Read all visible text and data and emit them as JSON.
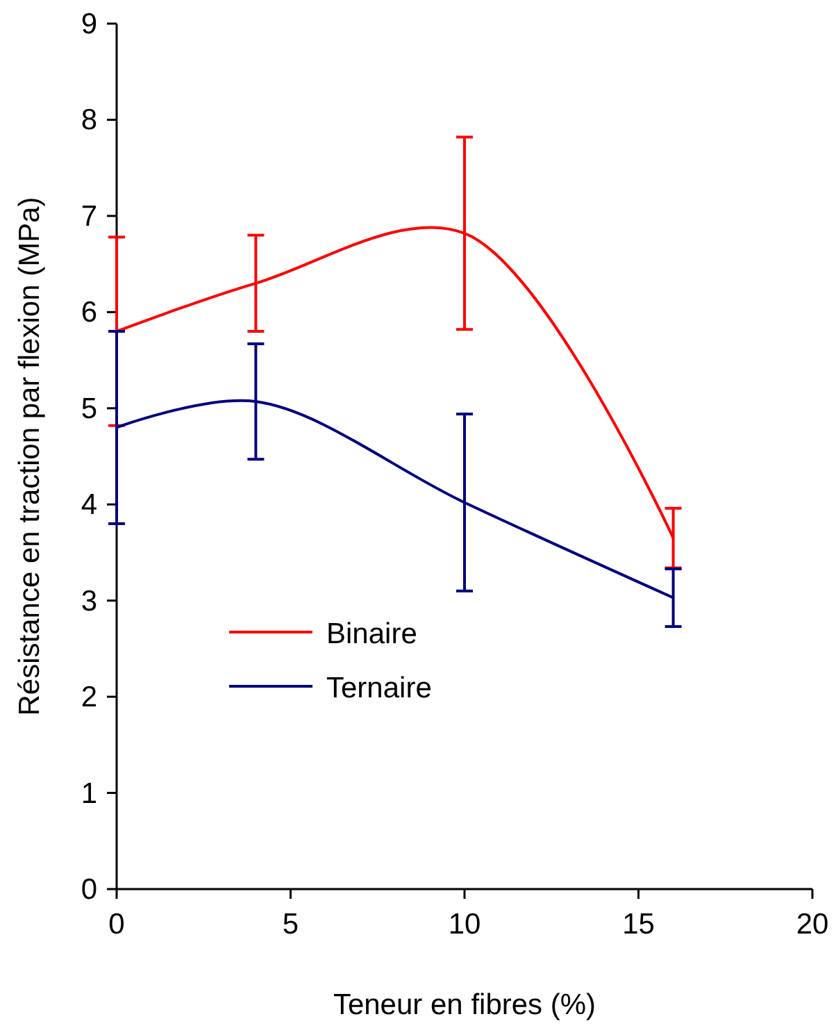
{
  "chart_data": {
    "type": "line",
    "xlabel": "Teneur en fibres (%)",
    "ylabel": "Résistance en traction par flexion (MPa)",
    "x": [
      0,
      4,
      10,
      16
    ],
    "xlim": [
      0,
      20
    ],
    "xticks": [
      0,
      5,
      10,
      15,
      20
    ],
    "ylim": [
      0,
      9
    ],
    "yticks": [
      0,
      1,
      2,
      3,
      4,
      5,
      6,
      7,
      8,
      9
    ],
    "grid": false,
    "legend": "left",
    "marker": "none",
    "line_style": "solid",
    "series": [
      {
        "name": "Binaire",
        "color": "#ff0000",
        "values": [
          5.8,
          6.3,
          6.82,
          3.65
        ],
        "errors": [
          0.98,
          0.5,
          1,
          0.31
        ]
      },
      {
        "name": "Ternaire",
        "color": "#000080",
        "values": [
          4.8,
          5.07,
          4.02,
          3.03
        ],
        "errors": [
          1,
          0.6,
          0.92,
          0.3
        ]
      }
    ]
  }
}
